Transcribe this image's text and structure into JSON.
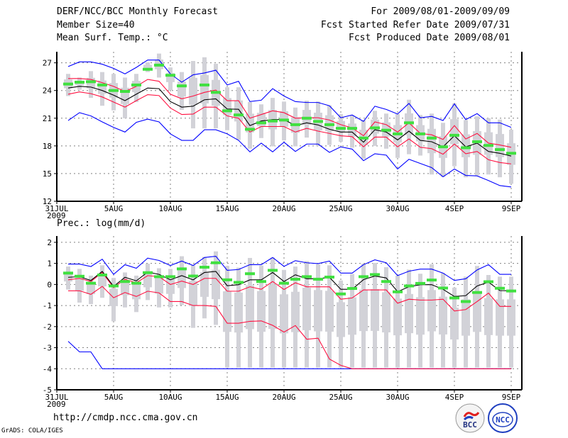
{
  "header": {
    "title": "DERF/NCC/BCC Monthly Forecast",
    "member_size": "Member Size=40",
    "variable": "Mean Surf. Temp.: °C",
    "period": "For 2009/08/01-2009/09/09",
    "started": "Fcst Started Refer Date 2009/07/31",
    "produced": "Fcst Produced Date 2009/08/01"
  },
  "footer": {
    "url": "http://cmdp.ncc.cma.gov.cn",
    "grads": "GrADS: COLA/IGES",
    "logo_bcc": "BCC",
    "logo_ncc": "NCC"
  },
  "colors": {
    "envelope": "#0000ff",
    "spread": "#ff1040",
    "mean": "#000000",
    "marker": "#40e040",
    "box": "#d2d2d8",
    "grid": "#808080"
  },
  "chart_data": [
    {
      "type": "line",
      "title": "Mean Surf. Temp.: °C",
      "x_ticks": [
        "31JUL",
        "5AUG",
        "10AUG",
        "15AUG",
        "20AUG",
        "25AUG",
        "30AUG",
        "4SEP",
        "9SEP"
      ],
      "x_tick_days": [
        0,
        5,
        10,
        15,
        20,
        25,
        30,
        35,
        40
      ],
      "x_year_label": "2009",
      "ylim": [
        12,
        28.2
      ],
      "y_ticks": [
        12,
        15,
        18,
        21,
        24,
        27
      ],
      "grid": true,
      "days": [
        1,
        2,
        3,
        4,
        5,
        6,
        7,
        8,
        9,
        10,
        11,
        12,
        13,
        14,
        15,
        16,
        17,
        18,
        19,
        20,
        21,
        22,
        23,
        24,
        25,
        26,
        27,
        28,
        29,
        30,
        31,
        32,
        33,
        34,
        35,
        36,
        37,
        38,
        39,
        40
      ],
      "series": [
        {
          "name": "max_envelope",
          "color": "envelope",
          "values": [
            26.6,
            27.1,
            27.1,
            26.85,
            26.4,
            25.8,
            26.5,
            27.3,
            27.3,
            25.8,
            24.9,
            25.7,
            25.9,
            26.2,
            24.6,
            25.0,
            22.8,
            22.95,
            24.2,
            23.4,
            22.8,
            22.7,
            22.7,
            22.35,
            21.05,
            21.35,
            20.65,
            22.3,
            21.95,
            21.45,
            22.6,
            21.05,
            21.2,
            20.75,
            22.55,
            20.85,
            21.5,
            20.5,
            20.5,
            20.0
          ]
        },
        {
          "name": "upper_spread",
          "color": "spread",
          "values": [
            25.3,
            25.3,
            25.2,
            24.85,
            24.45,
            23.9,
            24.45,
            25.2,
            25.0,
            23.6,
            23.1,
            23.4,
            23.8,
            24.05,
            22.9,
            22.9,
            21.0,
            21.4,
            21.8,
            21.6,
            21.0,
            21.06,
            21.05,
            20.8,
            20.3,
            19.95,
            19.1,
            20.6,
            20.3,
            19.5,
            20.5,
            19.35,
            19.2,
            18.7,
            20.2,
            18.75,
            19.35,
            18.3,
            18.1,
            17.85
          ]
        },
        {
          "name": "ensemble_mean",
          "color": "mean",
          "values": [
            24.27,
            24.45,
            24.37,
            24.0,
            23.5,
            22.9,
            23.6,
            24.27,
            24.2,
            22.8,
            22.2,
            22.3,
            23.0,
            23.1,
            22.0,
            21.97,
            20.2,
            20.7,
            20.85,
            20.85,
            20.2,
            20.5,
            20.27,
            19.8,
            19.5,
            19.5,
            18.4,
            19.75,
            19.5,
            18.65,
            19.6,
            18.6,
            18.45,
            17.9,
            19.1,
            17.9,
            18.3,
            17.4,
            17.2,
            16.9
          ]
        },
        {
          "name": "lower_spread",
          "color": "spread",
          "values": [
            23.6,
            23.85,
            23.66,
            23.3,
            22.75,
            22.2,
            22.9,
            23.55,
            23.45,
            22.1,
            21.4,
            21.45,
            22.2,
            22.2,
            21.25,
            21.0,
            19.5,
            20.1,
            20.1,
            20.1,
            19.5,
            19.9,
            19.6,
            19.35,
            19.1,
            19.0,
            17.9,
            18.95,
            18.95,
            17.9,
            18.75,
            17.85,
            17.7,
            17.1,
            18.2,
            17.15,
            17.4,
            16.5,
            16.2,
            16.05
          ]
        },
        {
          "name": "min_envelope",
          "color": "envelope",
          "values": [
            20.75,
            21.6,
            21.25,
            20.6,
            20.0,
            19.5,
            20.55,
            20.9,
            20.6,
            19.3,
            18.6,
            18.6,
            19.75,
            19.75,
            19.3,
            18.6,
            17.35,
            18.3,
            17.35,
            18.4,
            17.4,
            18.2,
            18.2,
            17.3,
            17.9,
            17.65,
            16.4,
            17.15,
            17.0,
            15.5,
            16.55,
            16.1,
            15.65,
            14.65,
            15.5,
            14.8,
            14.75,
            14.25,
            13.7,
            13.55
          ]
        }
      ],
      "markers": [
        24.7,
        24.9,
        24.95,
        24.6,
        24.0,
        23.9,
        24.6,
        26.3,
        26.75,
        25.65,
        24.5,
        null,
        24.6,
        23.8,
        21.8,
        21.35,
        19.8,
        20.5,
        20.7,
        20.8,
        20.3,
        21.0,
        20.65,
        20.3,
        19.9,
        19.9,
        18.85,
        19.95,
        19.7,
        19.3,
        20.5,
        19.3,
        18.85,
        17.9,
        19.15,
        17.8,
        18.45,
        18.05,
        17.6,
        17.2
      ],
      "box_max": [
        25.8,
        25.4,
        26.1,
        26.0,
        25.8,
        25.4,
        25.8,
        27.05,
        28.0,
        26.5,
        26.0,
        27.2,
        27.6,
        26.9,
        24.35,
        24.35,
        22.75,
        22.5,
        23.2,
        22.8,
        22.15,
        22.9,
        22.8,
        22.4,
        21.45,
        21.3,
        20.8,
        21.8,
        21.5,
        21.45,
        23.0,
        21.35,
        21.5,
        20.5,
        22.6,
        20.8,
        21.2,
        21.0,
        20.85,
        19.75
      ],
      "box_min": [
        23.4,
        24.1,
        23.2,
        22.35,
        21.85,
        21.0,
        22.75,
        26.0,
        25.4,
        24.05,
        21.9,
        19.9,
        19.9,
        19.9,
        19.7,
        18.65,
        17.7,
        18.85,
        17.95,
        18.6,
        17.95,
        18.9,
        18.0,
        18.1,
        18.45,
        17.8,
        16.6,
        18.0,
        17.7,
        16.7,
        17.1,
        16.95,
        14.9,
        14.65,
        15.8,
        14.6,
        14.8,
        14.9,
        14.6,
        13.9
      ]
    },
    {
      "type": "line",
      "title": "Prec.: log(mm/d)",
      "x_ticks": [
        "31JUL",
        "5AUG",
        "10AUG",
        "15AUG",
        "20AUG",
        "25AUG",
        "30AUG",
        "4SEP",
        "9SEP"
      ],
      "x_tick_days": [
        0,
        5,
        10,
        15,
        20,
        25,
        30,
        35,
        40
      ],
      "x_year_label": "2009",
      "ylim": [
        -5,
        2.3
      ],
      "y_ticks": [
        -5,
        -4,
        -3,
        -2,
        -1,
        0,
        1,
        2
      ],
      "grid": true,
      "days": [
        1,
        2,
        3,
        4,
        5,
        6,
        7,
        8,
        9,
        10,
        11,
        12,
        13,
        14,
        15,
        16,
        17,
        18,
        19,
        20,
        21,
        22,
        23,
        24,
        25,
        26,
        27,
        28,
        29,
        30,
        31,
        32,
        33,
        34,
        35,
        36,
        37,
        38,
        39,
        40
      ],
      "series": [
        {
          "name": "max_envelope",
          "color": "envelope",
          "values": [
            0.97,
            0.97,
            0.85,
            1.2,
            0.48,
            0.94,
            0.77,
            1.25,
            1.14,
            0.9,
            1.11,
            0.9,
            1.28,
            1.34,
            0.67,
            0.71,
            0.94,
            0.94,
            1.28,
            0.86,
            1.13,
            1.03,
            0.99,
            1.11,
            0.54,
            0.54,
            0.94,
            1.17,
            1.03,
            0.42,
            0.63,
            0.73,
            0.73,
            0.54,
            0.19,
            0.27,
            0.69,
            0.94,
            0.48,
            0.48
          ]
        },
        {
          "name": "min_envelope",
          "color": "envelope",
          "values": [
            -2.7,
            -3.2,
            -3.2,
            -4,
            -4,
            -4,
            -4,
            -4,
            -4,
            -4,
            -4,
            -4,
            -4,
            -4,
            -4,
            -4,
            -4,
            -4,
            -4,
            -4,
            -4,
            -4,
            -4,
            -4,
            -4,
            -4,
            -4,
            -4,
            -4,
            -4,
            -4,
            -4,
            -4,
            -4,
            -4,
            -4,
            -4,
            -4,
            -4,
            -4
          ]
        },
        {
          "name": "upper_spread",
          "color": "spread",
          "values": [
            0.22,
            0.29,
            0.14,
            0.57,
            -0.15,
            0.25,
            0.08,
            0.42,
            0.37,
            0,
            0.16,
            0,
            0.29,
            0.29,
            -0.32,
            -0.32,
            -0.11,
            -0.23,
            0.14,
            -0.24,
            0.08,
            -0.11,
            -0.11,
            -0.11,
            -0.7,
            -0.64,
            -0.26,
            -0.26,
            -0.26,
            -0.89,
            -0.7,
            -0.74,
            -0.74,
            -0.7,
            -1.26,
            -1.19,
            -0.81,
            -0.41,
            -1.04,
            -1.04
          ]
        },
        {
          "name": "lower_spread",
          "color": "spread",
          "values": [
            -0.3,
            -0.3,
            -0.47,
            -0.09,
            -0.63,
            -0.38,
            -0.57,
            -0.32,
            -0.4,
            -0.81,
            -0.81,
            -1.0,
            -1.0,
            -1.04,
            -1.84,
            -1.84,
            -1.75,
            -1.73,
            -1.94,
            -2.26,
            -1.95,
            -2.6,
            -2.55,
            -3.54,
            -3.84,
            -4,
            -4,
            -4,
            -4,
            -4,
            -4,
            -4,
            -4,
            -4,
            -4,
            -4,
            -4,
            -4,
            -4,
            -4
          ]
        },
        {
          "name": "ensemble_mean",
          "color": "mean",
          "values": [
            0.34,
            0.37,
            0.19,
            0.62,
            -0.09,
            0.34,
            0.17,
            0.59,
            0.48,
            0.22,
            0.42,
            0.22,
            0.57,
            0.62,
            -0.06,
            -0.01,
            0.22,
            0.22,
            0.57,
            0.14,
            0.46,
            0.27,
            0.27,
            0.34,
            -0.23,
            -0.23,
            0.23,
            0.4,
            0.31,
            -0.34,
            -0.11,
            -0.01,
            -0.01,
            -0.23,
            -0.57,
            -0.53,
            -0.07,
            0.11,
            -0.29,
            -0.3
          ]
        }
      ],
      "markers": [
        0.54,
        0.39,
        0.06,
        0.45,
        -0.07,
        0.14,
        0.06,
        0.56,
        0.37,
        0.37,
        0.74,
        0.4,
        0.82,
        1.03,
        0.22,
        0.1,
        0.51,
        0.14,
        0.67,
        0.06,
        0.25,
        0.37,
        0.25,
        0.35,
        -0.45,
        -0.19,
        0.37,
        0.47,
        0.14,
        -0.35,
        -0.07,
        0.05,
        0.21,
        -0.17,
        -0.64,
        -0.81,
        -0.38,
        0.13,
        -0.18,
        -0.31
      ],
      "box_max": [
        0.85,
        0.74,
        0.42,
        0.91,
        0.31,
        0.57,
        0.42,
        0.99,
        0.77,
        0.74,
        1.34,
        0.91,
        1.31,
        1.57,
        0.88,
        0.8,
        1.26,
        0.9,
        1.28,
        0.69,
        0.85,
        1.11,
        0.96,
        0.91,
        0.19,
        0.5,
        0.99,
        1.02,
        0.82,
        0.42,
        0.71,
        0.51,
        0.96,
        0.54,
        -0.15,
        0.37,
        0.88,
        0.45,
        0.37,
        0.37
      ],
      "box_min": [
        -0.24,
        -0.86,
        -0.93,
        -0.63,
        -1.75,
        -1.09,
        -1.31,
        -0.74,
        -1.09,
        -1.09,
        -0.98,
        -2.06,
        -1.61,
        -1.92,
        -3.94,
        -3.94,
        -3.94,
        -3.94,
        -3.94,
        -3.94,
        -3.94,
        -3.94,
        -3.94,
        -3.94,
        -3.94,
        -3.94,
        -3.94,
        -3.94,
        -3.94,
        -3.94,
        -3.94,
        -3.94,
        -3.94,
        -3.94,
        -3.94,
        -3.94,
        -3.94,
        -3.94,
        -3.94,
        -3.94
      ]
    }
  ]
}
